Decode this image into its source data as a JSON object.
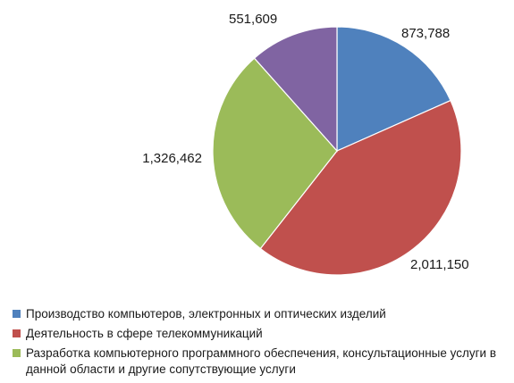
{
  "chart_data": {
    "type": "pie",
    "title": "",
    "start_angle_deg": 0,
    "direction": "clockwise",
    "slices": [
      {
        "label": "Производство компьютеров, электронных и оптических изделий",
        "value": 873788,
        "value_label": "873,788",
        "color": "#4f81bd",
        "in_legend": true
      },
      {
        "label": "Деятельность в сфере телекоммуникаций",
        "value": 2011150,
        "value_label": "2,011,150",
        "color": "#c0504d",
        "in_legend": true
      },
      {
        "label": "Разработка компьютерного программного обеспечения, консультационные услуги в данной области и другие сопутствующие услуги",
        "value": 1326462,
        "value_label": "1,326,462",
        "color": "#9bbb59",
        "in_legend": true
      },
      {
        "label": "",
        "value": 551609,
        "value_label": "551,609",
        "color": "#8064a2",
        "in_legend": false
      }
    ],
    "legend": {
      "placement": "bottom-left",
      "items": [
        {
          "label": "Производство компьютеров, электронных и оптических изделий",
          "color": "#4f81bd"
        },
        {
          "label": "Деятельность в сфере телекоммуникаций",
          "color": "#c0504d"
        },
        {
          "label": "Разработка компьютерного программного обеспечения, консультационные услуги в данной области и другие сопутствующие услуги",
          "color": "#9bbb59"
        }
      ]
    }
  }
}
